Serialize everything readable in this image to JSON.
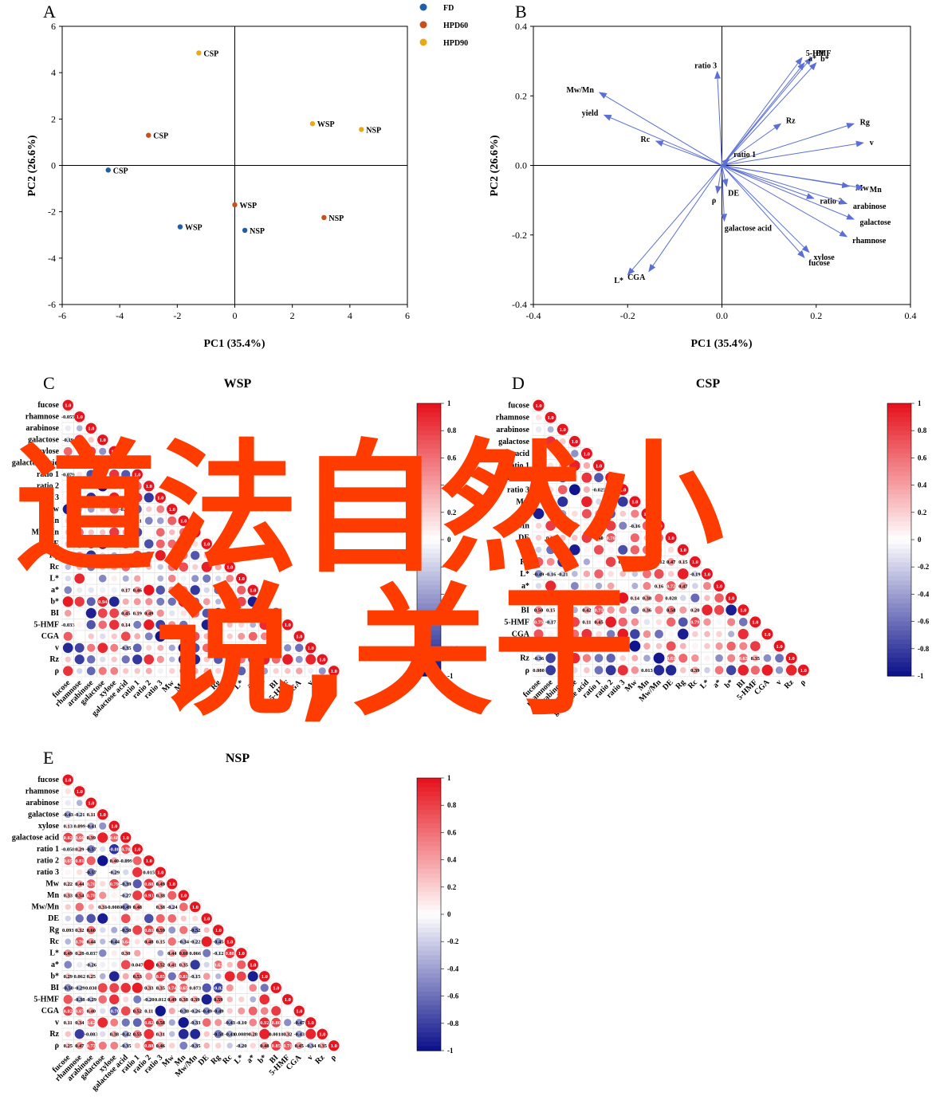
{
  "panels": {
    "A": {
      "letter": "A",
      "xlabel": "PC1 (35.4%)",
      "ylabel": "PC2 (26.6%)",
      "xticks": [
        "-6",
        "-4",
        "-2",
        "0",
        "2",
        "4",
        "6"
      ],
      "yticks": [
        "6",
        "4",
        "2",
        "0",
        "-2",
        "-4",
        "-6"
      ]
    },
    "B": {
      "letter": "B",
      "xlabel": "PC1 (35.4%)",
      "ylabel": "PC2 (26.6%)",
      "xticks": [
        "-0.4",
        "-0.2",
        "0.0",
        "0.2",
        "0.4"
      ],
      "yticks": [
        "0.4",
        "0.2",
        "0.0",
        "-0.2",
        "-0.4"
      ]
    },
    "C": {
      "letter": "C",
      "title": "WSP"
    },
    "D": {
      "letter": "D",
      "title": "CSP"
    },
    "E": {
      "letter": "E",
      "title": "NSP"
    }
  },
  "chart_data": [
    {
      "type": "scatter",
      "xlabel": "PC1 (35.4%)",
      "ylabel": "PC2 (26.6%)",
      "xlim": [
        -6,
        6
      ],
      "ylim": [
        -6,
        6
      ],
      "legend_position": "top-right",
      "series": [
        {
          "name": "FD",
          "color": "#1f5fa8",
          "points": [
            {
              "x": -4.4,
              "y": -0.2,
              "label": "CSP"
            },
            {
              "x": -1.9,
              "y": -2.65,
              "label": "WSP"
            },
            {
              "x": 0.35,
              "y": -2.8,
              "label": "NSP"
            }
          ]
        },
        {
          "name": "HPD60",
          "color": "#c8511b",
          "points": [
            {
              "x": -3.0,
              "y": 1.3,
              "label": "CSP"
            },
            {
              "x": 0.0,
              "y": -1.7,
              "label": "WSP"
            },
            {
              "x": 3.1,
              "y": -2.25,
              "label": "NSP"
            }
          ]
        },
        {
          "name": "HPD90",
          "color": "#e8a818",
          "points": [
            {
              "x": -1.25,
              "y": 4.85,
              "label": "CSP"
            },
            {
              "x": 2.7,
              "y": 1.8,
              "label": "WSP"
            },
            {
              "x": 4.4,
              "y": 1.55,
              "label": "NSP"
            }
          ]
        }
      ]
    },
    {
      "type": "biplot",
      "xlabel": "PC1 (35.4%)",
      "ylabel": "PC2 (26.6%)",
      "xlim": [
        -0.4,
        0.4
      ],
      "ylim": [
        -0.4,
        0.4
      ],
      "arrow_color": "#5b6fd6",
      "vectors": [
        {
          "label": "ratio 3",
          "x": -0.01,
          "y": 0.27
        },
        {
          "label": "Mw/Mn",
          "x": -0.26,
          "y": 0.21
        },
        {
          "label": "yield",
          "x": -0.25,
          "y": 0.145
        },
        {
          "label": "Rc",
          "x": -0.14,
          "y": 0.07
        },
        {
          "label": "5-HMF",
          "x": 0.17,
          "y": 0.31
        },
        {
          "label": "BI",
          "x": 0.19,
          "y": 0.31
        },
        {
          "label": "a*",
          "x": 0.175,
          "y": 0.295
        },
        {
          "label": "b*",
          "x": 0.2,
          "y": 0.295
        },
        {
          "label": "Rz",
          "x": 0.125,
          "y": 0.12
        },
        {
          "label": "Rg",
          "x": 0.28,
          "y": 0.12
        },
        {
          "label": "v",
          "x": 0.3,
          "y": 0.065
        },
        {
          "label": "ratio 1",
          "x": 0.015,
          "y": 0.02
        },
        {
          "label": "Mw",
          "x": 0.27,
          "y": -0.06
        },
        {
          "label": "Mn",
          "x": 0.3,
          "y": -0.065
        },
        {
          "label": "ratio 2",
          "x": 0.195,
          "y": -0.095
        },
        {
          "label": "arabinose",
          "x": 0.265,
          "y": -0.11
        },
        {
          "label": "galactose",
          "x": 0.28,
          "y": -0.155
        },
        {
          "label": "rhamnose",
          "x": 0.265,
          "y": -0.205
        },
        {
          "label": "xylose",
          "x": 0.185,
          "y": -0.25
        },
        {
          "label": "fucose",
          "x": 0.175,
          "y": -0.265
        },
        {
          "label": "DE",
          "x": 0.01,
          "y": -0.06
        },
        {
          "label": "ρ",
          "x": -0.01,
          "y": -0.08
        },
        {
          "label": "galactose acid",
          "x": 0.005,
          "y": -0.16
        },
        {
          "label": "L*",
          "x": -0.2,
          "y": -0.315
        },
        {
          "label": "CGA",
          "x": -0.155,
          "y": -0.305
        }
      ]
    },
    {
      "type": "heatmap",
      "panel": "C",
      "title": "WSP",
      "variables": [
        "fucose",
        "rhamnose",
        "arabinose",
        "galactose",
        "xylose",
        "galactose acid",
        "ratio 1",
        "ratio 2",
        "ratio 3",
        "Mw",
        "Mn",
        "Mw/Mn",
        "DE",
        "Rg",
        "Rc",
        "L*",
        "a*",
        "b*",
        "BI",
        "5-HMF",
        "CGA",
        "v",
        "Rz",
        "ρ"
      ],
      "visible_values": {
        "rhamnose/fucose": "-0.055",
        "galactose/fucose": "-0.19",
        "ratio 1/fucose": "-0.079",
        "b*/galactose": "0.94",
        "b*/Mn": "0.98",
        "a*/galactose acid": "0.17",
        "a*/ratio 1": "0.46",
        "BI/galactose acid": "0.45",
        "BI/ratio 1": "0.19",
        "BI/ratio 2": "0.49",
        "5-HMF/fucose": "-0.033",
        "5-HMF/galactose acid": "0.14",
        "v/galactose acid": "-0.35",
        "ratio 2/arabinose": "-0.0057",
        "ratio 3/Mw": "0.12",
        "Mw/galactose acid": "-0.093",
        "Mn/galactose acid": "0.11",
        "Mn/ratio 1": "0.11"
      },
      "colorbar_ticks": [
        "1",
        "0.8",
        "0.6",
        "0.4",
        "0.2",
        "0",
        "-0.2",
        "-0.4",
        "-0.6",
        "-0.8",
        "-1"
      ]
    },
    {
      "type": "heatmap",
      "panel": "D",
      "title": "CSP",
      "variables": [
        "fucose",
        "rhamnose",
        "arabinose",
        "galactose",
        "galactose acid",
        "ratio 1",
        "ratio 2",
        "ratio 3",
        "Mw",
        "Mn",
        "Mw/Mn",
        "DE",
        "Rg",
        "Rc",
        "L*",
        "a*",
        "b*",
        "BI",
        "5-HMF",
        "CGA",
        "v",
        "Rz",
        "ρ"
      ],
      "visible_values": {
        "galactose/fucose": "0.19",
        "ratio 2/fucose": "-0.33",
        "ratio 3/xylose": "-0.037",
        "ratio 3/ratio 1": "-0.025",
        "ratio 3/ratio 2": "0.18",
        "Mw/Mn/Mw": "-0.16",
        "Mw/Mn/Rg": "0.27",
        "DE/rhamnose": "0.19",
        "DE/ratio 1": "0.40",
        "DE/ratio 2": "0.70",
        "Rc/Mn": "0.14",
        "Rc/Mw/Mn": "0.012",
        "Rc/DE": "0.47",
        "Rc/Rg": "0.15",
        "Rc/ratio 3": "0.22",
        "L*/fucose": "-0.49",
        "L*/rhamnose": "-0.16",
        "L*/arabinose": "-0.21",
        "L*/Rc": "-0.19",
        "a*/Mw/Mn": "0.16",
        "a*/DE": "0.72",
        "a*/Rg": "0.47",
        "b*/fucose": "0.29",
        "b*/rhamnose": "0.37",
        "b*/arabinose": "0.42",
        "b*/Mw": "0.14",
        "b*/Mn": "0.38",
        "b*/DE": "0.028",
        "BI/fucose": "0.50",
        "BI/rhamnose": "0.15",
        "BI/arabinose": "0.21",
        "BI/galactose acid": "0.42",
        "BI/ratio 1": "0.71",
        "BI/Mn": "0.36",
        "BI/DE": "0.58",
        "BI/Rc": "0.20",
        "5-HMF/fucose": "0.75",
        "5-HMF/rhamnose": "-0.17",
        "5-HMF/arabinose": "-0.1",
        "5-HMF/galactose acid": "0.11",
        "5-HMF/ratio 1": "0.45",
        "5-HMF/Rc": "0.79",
        "v/fucose": "0.19",
        "v/rhamnose": "0.46",
        "v/arabinose": "0.51",
        "v/xylose": "0.69",
        "Rz/fucose": "-0.36",
        "Rz/DE": "0.61",
        "Rz/BI": "0.63",
        "Rz/5-HMF": "0.35",
        "ρ/fucose": "0.080",
        "ρ/Mn": "0.013",
        "ρ/Rc": "0.39"
      },
      "colorbar_ticks": [
        "1",
        "0.8",
        "0.6",
        "0.4",
        "0.2",
        "0",
        "-0.2",
        "-0.4",
        "-0.6",
        "-0.8",
        "-1"
      ]
    },
    {
      "type": "heatmap",
      "panel": "E",
      "title": "NSP",
      "variables": [
        "fucose",
        "rhamnose",
        "arabinose",
        "galactose",
        "xylose",
        "galactose acid",
        "ratio 1",
        "ratio 2",
        "ratio 3",
        "Mw",
        "Mn",
        "Mw/Mn",
        "DE",
        "Rg",
        "Rc",
        "L*",
        "a*",
        "b*",
        "BI",
        "5-HMF",
        "CGA",
        "v",
        "Rz",
        "ρ"
      ],
      "visible_values": {
        "galactose/fucose": "-0.43",
        "galactose/rhamnose": "-0.21",
        "galactose/arabinose": "0.11",
        "xylose/fucose": "0.13",
        "xylose/rhamnose": "0.099",
        "xylose/arabinose": "-0.41",
        "galactose acid/fucose": "0.82",
        "galactose acid/rhamnose": "0.66",
        "galactose acid/arabinose": "0.39",
        "galactose acid/xylose": "0.68",
        "ratio 1/fucose": "-0.058",
        "ratio 1/rhamnose": "0.29",
        "ratio 1/arabinose": "-0.57",
        "ratio 1/xylose": "-0.88",
        "ratio 1/galactose acid": "0.78",
        "ratio 2/fucose": "0.65",
        "ratio 2/rhamnose": "0.81",
        "ratio 2/xylose": "0.40",
        "ratio 2/galactose acid": "-0.099",
        "ratio 3/arabinose": "-0.57",
        "ratio 3/xylose": "-0.29",
        "ratio 3/ratio 2": "0.015",
        "Mw/fucose": "0.22",
        "Mw/rhamnose": "0.44",
        "Mw/arabinose": "0.70",
        "Mw/xylose": "0.79",
        "Mw/galactose acid": "-0.39",
        "Mw/ratio 2": "0.88",
        "Mw/ratio 3": "0.49",
        "Mn/fucose": "0.33",
        "Mn/rhamnose": "0.54",
        "Mn/arabinose": "0.78",
        "Mn/galactose acid": "-0.27",
        "Mn/ratio 2": "0.93",
        "Mn/ratio 3": "0.38",
        "Mw/Mn/xylose": "-0.0080",
        "Mw/Mn/galactose": "0.31",
        "Mw/Mn/galactose acid": "-0.49",
        "Mw/Mn/ratio 1": "0.48",
        "Mw/Mn/ratio 3": "0.38",
        "Mw/Mn/Mw": "-0.24",
        "Rg/fucose": "0.093",
        "Rg/rhamnose": "0.32",
        "Rg/arabinose": "0.60",
        "Rg/galactose acid": "-0.50",
        "Rg/ratio 2": "0.81",
        "Rg/ratio 3": "0.59",
        "Rg/Mw/Mn": "-0.52",
        "Rc/rhamnose": "0.70",
        "Rc/arabinose": "0.44",
        "Rc/xylose": "-0.44",
        "Rc/galactose acid": "0.64",
        "Rc/ratio 2": "0.48",
        "Rc/ratio 3": "0.15",
        "Rc/Mn": "-0.34",
        "Rc/Mw/Mn": "-0.22",
        "Rc/Rg": "-0.45",
        "L*/fucose": "0.49",
        "L*/rhamnose": "0.28",
        "L*/arabinose": "-0.037",
        "L*/galactose acid": "0.30",
        "L*/Mw": "0.44",
        "L*/Mn": "0.60",
        "L*/Mw/Mn": "0.066",
        "L*/Rg": "-0.12",
        "L*/Rc": "0.88",
        "a*/arabinose": "-0.26",
        "a*/ratio 1": "0.047",
        "a*/ratio 3": "0.52",
        "a*/Mw": "0.41",
        "a*/Mn": "0.35",
        "a*/Rg": "0.62",
        "b*/fucose": "0.29",
        "b*/rhamnose": "0.062",
        "b*/arabinose": "0.25",
        "b*/ratio 1": "0.53",
        "b*/ratio 3": "0.85",
        "b*/Mn": "0.81",
        "b*/Mw/Mn": "-0.15",
        "BI/fucose": "-0.50",
        "BI/rhamnose": "-0.29",
        "BI/arabinose": "0.030",
        "BI/ratio 2": "0.33",
        "BI/ratio 3": "0.35",
        "BI/Mw": "0.74",
        "BI/Mn": "0.65",
        "BI/Mw/Mn": "0.073",
        "BI/Rg": "-0.82",
        "5-HMF/rhamnose": "-0.38",
        "5-HMF/arabinose": "-0.29",
        "5-HMF/ratio 2": "-0.20",
        "5-HMF/ratio 3": "0.012",
        "5-HMF/Mw": "0.49",
        "5-HMF/Mn": "0.38",
        "5-HMF/Mw/Mn": "0.39",
        "5-HMF/Rg": "0.59",
        "CGA/fucose": "0.82",
        "CGA/rhamnose": "0.67",
        "CGA/arabinose": "0.40",
        "CGA/xylose": "-0.70",
        "CGA/ratio 1": "0.52",
        "CGA/ratio 2": "0.11",
        "CGA/Mn": "-0.38",
        "CGA/Mw/Mn": "-0.26",
        "CGA/DE": "-0.49",
        "CGA/Rg": "-0.49",
        "v/fucose": "0.11",
        "v/rhamnose": "0.34",
        "v/arabinose": "0.62",
        "v/ratio 2": "0.82",
        "v/ratio 3": "0.58",
        "v/Mw/Mn": "-0.33",
        "v/Rc": "-0.43",
        "v/L*": "-0.10",
        "v/b*": "0.92",
        "v/BI": "0.80",
        "v/CGA": "-0.47",
        "Rz/arabinose": "-0.083",
        "Rz/xylose": "0.38",
        "Rz/galactose acid": "-0.42",
        "Rz/ratio 1": "0.55",
        "Rz/ratio 3": "0.31",
        "Rz/Rg": "-0.58",
        "Rz/Rc": "-0.41",
        "Rz/L*": "0.0089",
        "Rz/a*": "0.28",
        "Rz/BI": "0.0018",
        "Rz/5-HMF": "0.32",
        "Rz/CGA": "-0.43",
        "ρ/fucose": "0.25",
        "ρ/rhamnose": "0.47",
        "ρ/arabinose": "0.72",
        "ρ/galactose acid": "-0.35",
        "ρ/ratio 2": "0.88",
        "ρ/ratio 3": "0.46",
        "ρ/Mw/Mn": "-0.35",
        "ρ/L*": "-0.20",
        "ρ/b*": "0.48",
        "ρ/BI": "0.85",
        "ρ/5-HMF": "0.71",
        "ρ/CGA": "0.45",
        "ρ/v": "-0.34",
        "ρ/Rz": "0.35"
      },
      "colorbar_ticks": [
        "1",
        "0.8",
        "0.6",
        "0.4",
        "0.2",
        "0",
        "-0.2",
        "-0.4",
        "-0.6",
        "-0.8",
        "-1"
      ]
    }
  ],
  "watermark": {
    "line1": "道法自然小",
    "line2": "说,关于",
    "color": "#ff3c00"
  }
}
